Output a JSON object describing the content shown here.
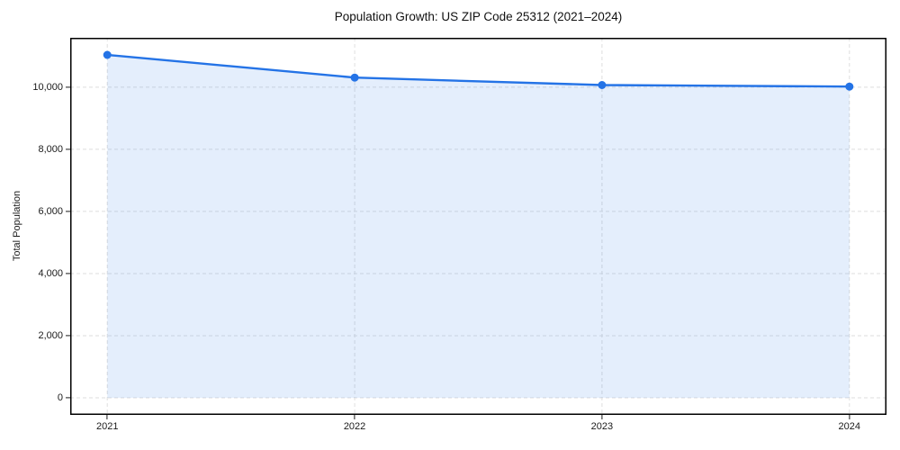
{
  "chart": {
    "title": "Population Growth: US ZIP Code 25312 (2021–2024)",
    "ylabel": "Total Population"
  },
  "chart_data": {
    "type": "area",
    "title": "Population Growth: US ZIP Code 25312 (2021–2024)",
    "xlabel": "",
    "ylabel": "Total Population",
    "series_name": "Total Population",
    "x": [
      2021,
      2022,
      2023,
      2024
    ],
    "x_tick_labels": [
      "2021",
      "2022",
      "2023",
      "2024"
    ],
    "values": [
      11040,
      10310,
      10070,
      10020
    ],
    "yticks": [
      0,
      2000,
      4000,
      6000,
      8000,
      10000
    ],
    "ytick_labels": [
      "0",
      "2,000",
      "4,000",
      "6,000",
      "8,000",
      "10,000"
    ],
    "xlim": [
      2020.85,
      2024.15
    ],
    "ylim": [
      -550,
      11590
    ],
    "grid": true,
    "grid_style": "dashed",
    "legend_position": "none",
    "line_color": "#2473e6",
    "fill_opacity": 0.12,
    "grid_color": "#dedede",
    "spine_color": "#000000",
    "marker": "circle"
  }
}
